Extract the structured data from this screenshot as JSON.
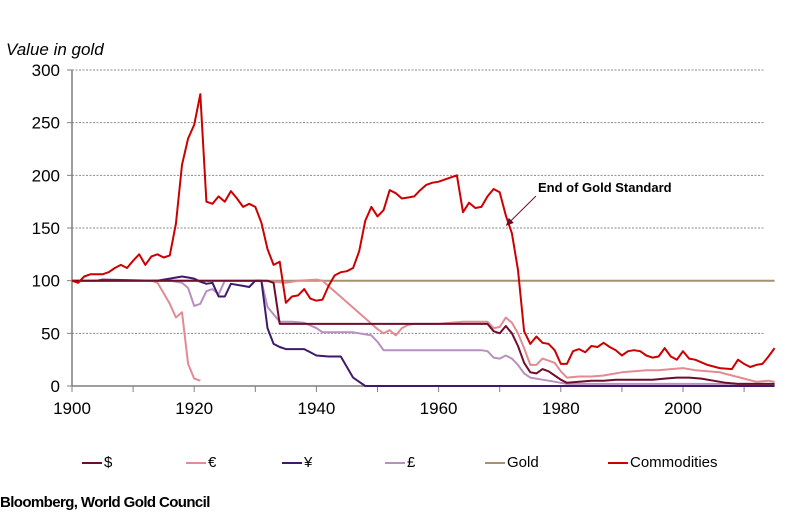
{
  "chart_data": {
    "type": "line",
    "title": "",
    "ylabel": "Value in gold",
    "xlabel": "",
    "xlim": [
      1900,
      2015
    ],
    "ylim": [
      0,
      300
    ],
    "x_ticks": [
      1900,
      1920,
      1940,
      1960,
      1980,
      2000
    ],
    "y_ticks": [
      0,
      50,
      100,
      150,
      200,
      250,
      300
    ],
    "grid": "horizontal-dashed",
    "legend_position": "bottom",
    "annotation": {
      "text": "End of Gold Standard",
      "arrow_to": {
        "x": 1971,
        "y": 152
      }
    },
    "series": [
      {
        "name": "Gold",
        "color": "#a39171",
        "points": [
          [
            1900,
            100
          ],
          [
            2015,
            100
          ]
        ]
      },
      {
        "name": "£",
        "color": "#b98fc0",
        "points": [
          [
            1900,
            100
          ],
          [
            1914,
            100
          ],
          [
            1916,
            100
          ],
          [
            1918,
            98
          ],
          [
            1919,
            93
          ],
          [
            1920,
            76
          ],
          [
            1921,
            78
          ],
          [
            1922,
            90
          ],
          [
            1923,
            92
          ],
          [
            1924,
            87
          ],
          [
            1925,
            100
          ],
          [
            1931,
            100
          ],
          [
            1932,
            75
          ],
          [
            1933,
            68
          ],
          [
            1934,
            61
          ],
          [
            1936,
            61
          ],
          [
            1938,
            60
          ],
          [
            1940,
            55
          ],
          [
            1941,
            51
          ],
          [
            1946,
            51
          ],
          [
            1949,
            48
          ],
          [
            1950,
            42
          ],
          [
            1951,
            34
          ],
          [
            1967,
            34
          ],
          [
            1968,
            33
          ],
          [
            1969,
            27
          ],
          [
            1970,
            26
          ],
          [
            1971,
            29
          ],
          [
            1972,
            26
          ],
          [
            1973,
            20
          ],
          [
            1974,
            12
          ],
          [
            1975,
            8
          ],
          [
            1977,
            6
          ],
          [
            1978,
            5
          ],
          [
            1980,
            3
          ],
          [
            1981,
            2
          ],
          [
            2015,
            2
          ]
        ]
      },
      {
        "name": "¥",
        "color": "#3f1a6b",
        "points": [
          [
            1900,
            100
          ],
          [
            1904,
            100
          ],
          [
            1905,
            101
          ],
          [
            1914,
            100
          ],
          [
            1915,
            101
          ],
          [
            1916,
            102
          ],
          [
            1918,
            104
          ],
          [
            1919,
            103
          ],
          [
            1920,
            102
          ],
          [
            1921,
            99
          ],
          [
            1922,
            97
          ],
          [
            1923,
            98
          ],
          [
            1924,
            85
          ],
          [
            1925,
            85
          ],
          [
            1926,
            97
          ],
          [
            1928,
            95
          ],
          [
            1929,
            94
          ],
          [
            1930,
            100
          ],
          [
            1931,
            100
          ],
          [
            1932,
            55
          ],
          [
            1933,
            40
          ],
          [
            1934,
            37
          ],
          [
            1935,
            35
          ],
          [
            1938,
            35
          ],
          [
            1939,
            32
          ],
          [
            1940,
            29
          ],
          [
            1942,
            28
          ],
          [
            1944,
            28
          ],
          [
            1945,
            18
          ],
          [
            1946,
            8
          ],
          [
            1947,
            4
          ],
          [
            1948,
            0
          ],
          [
            2015,
            0
          ]
        ]
      },
      {
        "name": "€",
        "color": "#e38a93",
        "points": [
          [
            1900,
            100
          ],
          [
            1913,
            100
          ],
          [
            1914,
            98
          ],
          [
            1915,
            88
          ],
          [
            1916,
            78
          ],
          [
            1917,
            65
          ],
          [
            1918,
            70
          ],
          [
            1919,
            21
          ],
          [
            1920,
            7
          ],
          [
            1921,
            5
          ]
        ]
      },
      {
        "name": "€ (later)",
        "color": "#e38a93",
        "points": [
          [
            1931,
            100
          ],
          [
            1933,
            99
          ],
          [
            1935,
            98
          ],
          [
            1937,
            100
          ],
          [
            1940,
            101
          ],
          [
            1941,
            100
          ],
          [
            1950,
            54
          ],
          [
            1951,
            50
          ],
          [
            1952,
            53
          ],
          [
            1953,
            48
          ],
          [
            1954,
            55
          ],
          [
            1955,
            58
          ],
          [
            1956,
            59
          ],
          [
            1960,
            59
          ],
          [
            1962,
            60
          ],
          [
            1964,
            61
          ],
          [
            1968,
            61
          ],
          [
            1969,
            55
          ],
          [
            1970,
            56
          ],
          [
            1971,
            65
          ],
          [
            1972,
            60
          ],
          [
            1973,
            50
          ],
          [
            1974,
            36
          ],
          [
            1975,
            20
          ],
          [
            1976,
            20
          ],
          [
            1977,
            26
          ],
          [
            1978,
            24
          ],
          [
            1979,
            22
          ],
          [
            1980,
            14
          ],
          [
            1981,
            8
          ],
          [
            1983,
            9
          ],
          [
            1985,
            9
          ],
          [
            1987,
            10
          ],
          [
            1989,
            12
          ],
          [
            1990,
            13
          ],
          [
            1992,
            14
          ],
          [
            1994,
            15
          ],
          [
            1996,
            15
          ],
          [
            1998,
            16
          ],
          [
            2000,
            17
          ],
          [
            2002,
            15
          ],
          [
            2004,
            14
          ],
          [
            2006,
            13
          ],
          [
            2008,
            10
          ],
          [
            2010,
            7
          ],
          [
            2012,
            4
          ],
          [
            2014,
            5
          ],
          [
            2015,
            4
          ]
        ]
      },
      {
        "name": "$",
        "color": "#6e0e2b",
        "points": [
          [
            1900,
            100
          ],
          [
            1932,
            100
          ],
          [
            1933,
            98
          ],
          [
            1934,
            59
          ],
          [
            1968,
            59
          ],
          [
            1969,
            52
          ],
          [
            1970,
            50
          ],
          [
            1971,
            57
          ],
          [
            1972,
            50
          ],
          [
            1973,
            38
          ],
          [
            1974,
            22
          ],
          [
            1975,
            13
          ],
          [
            1976,
            12
          ],
          [
            1977,
            16
          ],
          [
            1978,
            14
          ],
          [
            1979,
            10
          ],
          [
            1980,
            6
          ],
          [
            1981,
            3
          ],
          [
            1983,
            4
          ],
          [
            1985,
            5
          ],
          [
            1987,
            5
          ],
          [
            1989,
            6
          ],
          [
            1995,
            6
          ],
          [
            1997,
            7
          ],
          [
            1999,
            8
          ],
          [
            2001,
            8
          ],
          [
            2003,
            7
          ],
          [
            2005,
            5
          ],
          [
            2007,
            3
          ],
          [
            2009,
            2
          ],
          [
            2015,
            2
          ]
        ]
      },
      {
        "name": "Commodities",
        "color": "#cc0000",
        "points": [
          [
            1900,
            100
          ],
          [
            1901,
            98
          ],
          [
            1902,
            104
          ],
          [
            1903,
            106
          ],
          [
            1905,
            106
          ],
          [
            1906,
            108
          ],
          [
            1907,
            112
          ],
          [
            1908,
            115
          ],
          [
            1909,
            112
          ],
          [
            1910,
            119
          ],
          [
            1911,
            125
          ],
          [
            1912,
            115
          ],
          [
            1913,
            123
          ],
          [
            1914,
            125
          ],
          [
            1915,
            122
          ],
          [
            1916,
            124
          ],
          [
            1917,
            154
          ],
          [
            1918,
            210
          ],
          [
            1919,
            235
          ],
          [
            1920,
            248
          ],
          [
            1921,
            277
          ],
          [
            1922,
            175
          ],
          [
            1923,
            173
          ],
          [
            1924,
            180
          ],
          [
            1925,
            175
          ],
          [
            1926,
            185
          ],
          [
            1927,
            178
          ],
          [
            1928,
            170
          ],
          [
            1929,
            173
          ],
          [
            1930,
            170
          ],
          [
            1931,
            155
          ],
          [
            1932,
            130
          ],
          [
            1933,
            115
          ],
          [
            1934,
            118
          ],
          [
            1935,
            79
          ],
          [
            1936,
            85
          ],
          [
            1937,
            86
          ],
          [
            1938,
            92
          ],
          [
            1939,
            83
          ],
          [
            1940,
            81
          ],
          [
            1941,
            82
          ],
          [
            1942,
            95
          ],
          [
            1943,
            105
          ],
          [
            1944,
            108
          ],
          [
            1945,
            109
          ],
          [
            1946,
            112
          ],
          [
            1947,
            128
          ],
          [
            1948,
            157
          ],
          [
            1949,
            170
          ],
          [
            1950,
            161
          ],
          [
            1951,
            167
          ],
          [
            1952,
            186
          ],
          [
            1953,
            183
          ],
          [
            1954,
            178
          ],
          [
            1955,
            179
          ],
          [
            1956,
            180
          ],
          [
            1957,
            186
          ],
          [
            1958,
            191
          ],
          [
            1959,
            193
          ],
          [
            1960,
            194
          ],
          [
            1962,
            198
          ],
          [
            1963,
            200
          ],
          [
            1964,
            165
          ],
          [
            1965,
            174
          ],
          [
            1966,
            169
          ],
          [
            1967,
            170
          ],
          [
            1968,
            180
          ],
          [
            1969,
            187
          ],
          [
            1970,
            184
          ],
          [
            1971,
            162
          ],
          [
            1972,
            145
          ],
          [
            1973,
            110
          ],
          [
            1974,
            52
          ],
          [
            1975,
            40
          ],
          [
            1976,
            47
          ],
          [
            1977,
            41
          ],
          [
            1978,
            40
          ],
          [
            1979,
            34
          ],
          [
            1980,
            21
          ],
          [
            1981,
            21
          ],
          [
            1982,
            33
          ],
          [
            1983,
            35
          ],
          [
            1984,
            32
          ],
          [
            1985,
            38
          ],
          [
            1986,
            37
          ],
          [
            1987,
            41
          ],
          [
            1988,
            37
          ],
          [
            1989,
            34
          ],
          [
            1990,
            29
          ],
          [
            1991,
            33
          ],
          [
            1992,
            34
          ],
          [
            1993,
            33
          ],
          [
            1994,
            29
          ],
          [
            1995,
            27
          ],
          [
            1996,
            28
          ],
          [
            1997,
            36
          ],
          [
            1998,
            28
          ],
          [
            1999,
            25
          ],
          [
            2000,
            33
          ],
          [
            2001,
            26
          ],
          [
            2002,
            25
          ],
          [
            2004,
            20
          ],
          [
            2006,
            17
          ],
          [
            2008,
            16
          ],
          [
            2009,
            25
          ],
          [
            2010,
            21
          ],
          [
            2011,
            18
          ],
          [
            2012,
            20
          ],
          [
            2013,
            21
          ],
          [
            2014,
            28
          ],
          [
            2015,
            36
          ]
        ]
      }
    ],
    "legend": [
      {
        "label": "$",
        "color": "#6e0e2b"
      },
      {
        "label": "€",
        "color": "#e38a93"
      },
      {
        "label": "¥",
        "color": "#3f1a6b"
      },
      {
        "label": "£",
        "color": "#b98fc0"
      },
      {
        "label": "Gold",
        "color": "#a39171"
      },
      {
        "label": "Commodities",
        "color": "#cc0000"
      }
    ]
  },
  "source": "Bloomberg, World Gold Council"
}
